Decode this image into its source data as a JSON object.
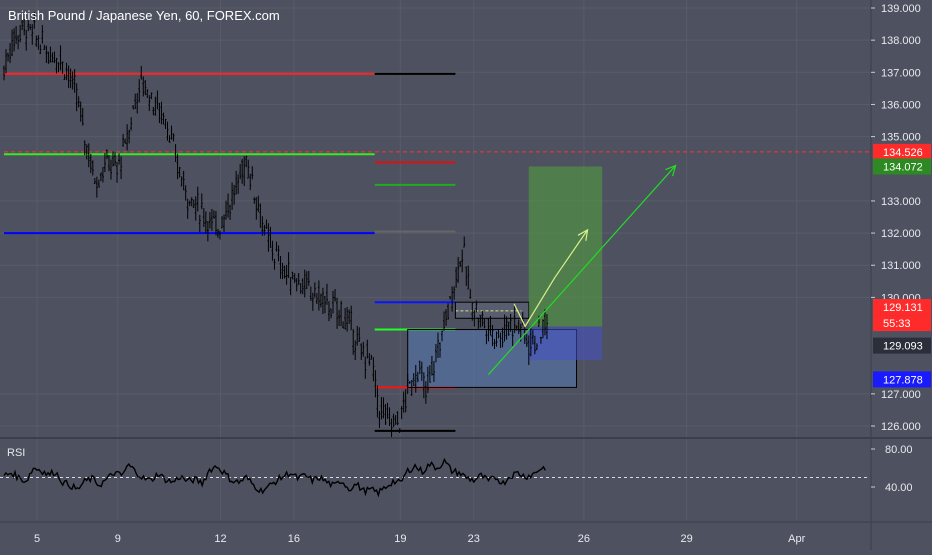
{
  "header": {
    "symbol_title": "British Pound / Japanese Yen, 60, FOREX.com"
  },
  "chart_data": [
    {
      "type": "candlestick",
      "title": "British Pound / Japanese Yen, 60, FOREX.com",
      "price_axis": {
        "range": [
          125.6,
          139.2
        ],
        "ticks": [
          "139.000",
          "138.000",
          "137.000",
          "136.000",
          "135.000",
          "133.000",
          "132.000",
          "131.000",
          "130.000",
          "127.000",
          "126.000"
        ]
      },
      "time_axis": {
        "ticks": [
          "5",
          "9",
          "12",
          "16",
          "19",
          "23",
          "26",
          "29",
          "Apr"
        ]
      },
      "price_path": [
        [
          0,
          137.1
        ],
        [
          0.2,
          137.9
        ],
        [
          0.5,
          138.4
        ],
        [
          0.8,
          138.2
        ],
        [
          1.2,
          137.6
        ],
        [
          1.5,
          137.5
        ],
        [
          1.7,
          137.1
        ],
        [
          2.0,
          136.2
        ],
        [
          2.2,
          135.0
        ],
        [
          2.5,
          133.6
        ],
        [
          2.8,
          134.2
        ],
        [
          3.1,
          134.0
        ],
        [
          3.4,
          135.1
        ],
        [
          3.6,
          136.3
        ],
        [
          3.8,
          136.7
        ],
        [
          4.1,
          136.0
        ],
        [
          4.4,
          135.6
        ],
        [
          4.7,
          134.2
        ],
        [
          5.0,
          133.2
        ],
        [
          5.2,
          132.9
        ],
        [
          5.5,
          132.5
        ],
        [
          5.8,
          132.1
        ],
        [
          6.0,
          132.6
        ],
        [
          6.3,
          133.3
        ],
        [
          6.6,
          134.3
        ],
        [
          6.9,
          133.0
        ],
        [
          7.1,
          132.0
        ],
        [
          7.4,
          131.3
        ],
        [
          7.7,
          130.7
        ],
        [
          8.0,
          130.6
        ],
        [
          8.3,
          130.2
        ],
        [
          8.6,
          130.0
        ],
        [
          8.9,
          129.7
        ],
        [
          9.2,
          129.5
        ],
        [
          9.5,
          129.0
        ],
        [
          9.7,
          128.3
        ],
        [
          10.0,
          128.1
        ],
        [
          10.2,
          126.6
        ],
        [
          10.5,
          126.1
        ],
        [
          10.8,
          126.2
        ],
        [
          11.0,
          127.1
        ],
        [
          11.3,
          127.8
        ],
        [
          11.5,
          127.0
        ],
        [
          11.8,
          128.3
        ],
        [
          12.1,
          129.6
        ],
        [
          12.3,
          130.6
        ],
        [
          12.5,
          131.5
        ],
        [
          12.7,
          130.0
        ],
        [
          12.9,
          129.5
        ],
        [
          13.2,
          129.0
        ],
        [
          13.5,
          128.8
        ],
        [
          13.8,
          129.2
        ],
        [
          14.1,
          129.1
        ],
        [
          14.3,
          128.6
        ],
        [
          14.6,
          128.8
        ],
        [
          14.8,
          129.3
        ]
      ],
      "horizontal_levels": [
        {
          "price": 136.95,
          "color": "#ff2222",
          "style": "solid",
          "start_day": 0,
          "end_day": 10.1
        },
        {
          "price": 136.95,
          "color": "#000000",
          "style": "solid",
          "start_day": 10.1,
          "end_day": 12.3
        },
        {
          "price": 134.526,
          "color": "#ff3333",
          "style": "dashed",
          "start_day": 0,
          "end_day": 23.6
        },
        {
          "price": 134.45,
          "color": "#33ee22",
          "style": "solid",
          "start_day": 0,
          "end_day": 10.1
        },
        {
          "price": 134.2,
          "color": "#dd1111",
          "style": "solid",
          "start_day": 10.1,
          "end_day": 12.3
        },
        {
          "price": 133.5,
          "color": "#22aa22",
          "style": "solid",
          "start_day": 10.1,
          "end_day": 12.3
        },
        {
          "price": 132.0,
          "color": "#0000ff",
          "style": "solid",
          "start_day": 0,
          "end_day": 10.1
        },
        {
          "price": 132.05,
          "color": "#666666",
          "style": "solid",
          "start_day": 10.1,
          "end_day": 12.3
        },
        {
          "price": 129.85,
          "color": "#0a14ff",
          "style": "solid",
          "start_day": 10.1,
          "end_day": 12.3
        },
        {
          "price": 129.0,
          "color": "#22ff22",
          "style": "solid",
          "start_day": 10.1,
          "end_day": 12.3
        },
        {
          "price": 127.2,
          "color": "#ff1111",
          "style": "solid",
          "start_day": 10.1,
          "end_day": 12.3
        },
        {
          "price": 125.85,
          "color": "#000000",
          "style": "solid",
          "start_day": 10.1,
          "end_day": 12.3
        },
        {
          "price": 129.58,
          "color": "#ffff66",
          "style": "dotted",
          "start_day": 12.3,
          "end_day": 14.1
        }
      ],
      "zones": [
        {
          "price_top": 129.85,
          "price_bottom": 129.35,
          "start_day": 12.3,
          "end_day": 14.3,
          "fill": "rgba(120,130,160,0.25)",
          "stroke": "#000000"
        },
        {
          "price_top": 129.0,
          "price_bottom": 127.2,
          "start_day": 11.0,
          "end_day": 15.6,
          "fill": "rgba(90,130,200,0.45)",
          "stroke": "#000000"
        }
      ],
      "position_tool": {
        "entry": 129.093,
        "target": 134.072,
        "stop": 128.05,
        "start_day": 14.3,
        "end_day": 16.3,
        "profit_color": "rgba(80,160,60,0.55)",
        "loss_color": "rgba(70,80,200,0.55)"
      },
      "projections": [
        {
          "color": "#d8f08a",
          "points": [
            [
              13.9,
              129.8
            ],
            [
              14.2,
              129.1
            ],
            [
              15.0,
              130.6
            ],
            [
              15.9,
              132.1
            ]
          ]
        },
        {
          "color": "#22dd22",
          "points": [
            [
              13.2,
              127.6
            ],
            [
              18.3,
              134.1
            ]
          ]
        }
      ],
      "price_labels": [
        {
          "text": "134.526",
          "price": 134.526,
          "bg": "#ff2b2b",
          "fg": "#ffffff"
        },
        {
          "text": "134.072",
          "price": 134.072,
          "bg": "#2d8a22",
          "fg": "#ffffff"
        },
        {
          "text": "129.131",
          "price": 129.7,
          "bg": "#ff2b2b",
          "fg": "#ffffff"
        },
        {
          "text": "55:33",
          "price": 129.2,
          "bg": "#ff2b2b",
          "fg": "#ffffff"
        },
        {
          "text": "129.093",
          "price": 128.5,
          "bg": "#2a2f3a",
          "fg": "#ffffff"
        },
        {
          "text": "127.878",
          "price": 127.45,
          "bg": "#1a1aff",
          "fg": "#ffffff"
        }
      ]
    },
    {
      "type": "line",
      "title": "RSI",
      "y_ticks": [
        "80.00",
        "40.00"
      ],
      "ylim": [
        30,
        85
      ],
      "midline": 50,
      "series_points": [
        [
          0,
          52
        ],
        [
          0.2,
          55
        ],
        [
          0.4,
          50
        ],
        [
          0.6,
          46
        ],
        [
          0.8,
          60
        ],
        [
          1.0,
          58
        ],
        [
          1.2,
          53
        ],
        [
          1.4,
          56
        ],
        [
          1.6,
          45
        ],
        [
          1.8,
          42
        ],
        [
          2.0,
          37
        ],
        [
          2.2,
          46
        ],
        [
          2.4,
          49
        ],
        [
          2.6,
          42
        ],
        [
          2.8,
          48
        ],
        [
          3.0,
          55
        ],
        [
          3.2,
          52
        ],
        [
          3.4,
          63
        ],
        [
          3.6,
          56
        ],
        [
          3.8,
          49
        ],
        [
          4.0,
          47
        ],
        [
          4.2,
          54
        ],
        [
          4.4,
          48
        ],
        [
          4.6,
          45
        ],
        [
          4.8,
          51
        ],
        [
          5.0,
          46
        ],
        [
          5.2,
          48
        ],
        [
          5.4,
          44
        ],
        [
          5.6,
          58
        ],
        [
          5.8,
          62
        ],
        [
          6.0,
          55
        ],
        [
          6.2,
          47
        ],
        [
          6.4,
          45
        ],
        [
          6.6,
          50
        ],
        [
          6.8,
          42
        ],
        [
          7.0,
          36
        ],
        [
          7.2,
          40
        ],
        [
          7.4,
          46
        ],
        [
          7.6,
          51
        ],
        [
          7.8,
          55
        ],
        [
          8.0,
          49
        ],
        [
          8.2,
          52
        ],
        [
          8.4,
          47
        ],
        [
          8.6,
          50
        ],
        [
          8.8,
          45
        ],
        [
          9.0,
          41
        ],
        [
          9.2,
          47
        ],
        [
          9.4,
          38
        ],
        [
          9.6,
          43
        ],
        [
          9.8,
          36
        ],
        [
          10.0,
          37
        ],
        [
          10.2,
          34
        ],
        [
          10.4,
          40
        ],
        [
          10.6,
          46
        ],
        [
          10.8,
          44
        ],
        [
          11.0,
          57
        ],
        [
          11.2,
          62
        ],
        [
          11.4,
          56
        ],
        [
          11.6,
          64
        ],
        [
          11.8,
          60
        ],
        [
          12.0,
          67
        ],
        [
          12.2,
          57
        ],
        [
          12.4,
          55
        ],
        [
          12.6,
          50
        ],
        [
          12.8,
          47
        ],
        [
          13.0,
          52
        ],
        [
          13.2,
          46
        ],
        [
          13.4,
          50
        ],
        [
          13.6,
          44
        ],
        [
          13.8,
          52
        ],
        [
          14.0,
          55
        ],
        [
          14.2,
          51
        ],
        [
          14.4,
          53
        ],
        [
          14.6,
          59
        ],
        [
          14.8,
          61
        ]
      ]
    }
  ]
}
